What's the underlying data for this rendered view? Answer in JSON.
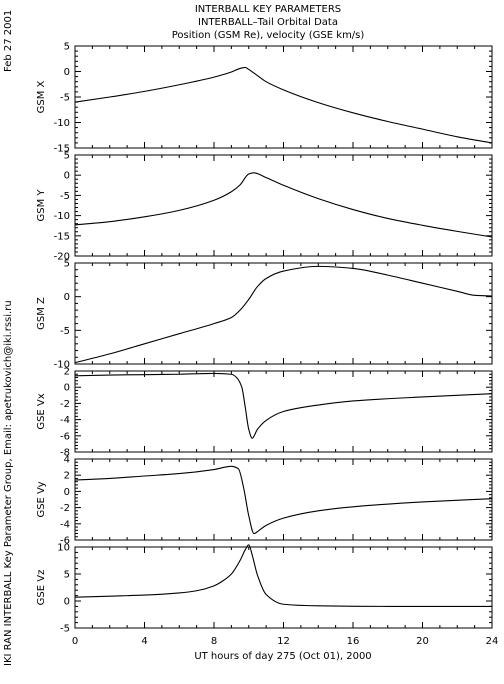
{
  "header": {
    "title": "INTERBALL KEY PARAMETERS",
    "subtitle": "INTERBALL–Tail Orbital Data",
    "subtitle2": "Position (GSM Re), velocity (GSE km/s)",
    "date": "Feb 27 2001",
    "credit": "IKI RAN INTERBALL Key Parameter Group, Email: apetrukovich@iki.rssi.ru"
  },
  "chart_data": [
    {
      "type": "line",
      "ylabel": "GSM X",
      "xlim": [
        0,
        24
      ],
      "ylim": [
        -15,
        5
      ],
      "yticks": [
        5,
        0,
        -5,
        -10,
        -15
      ],
      "x": [
        0,
        2,
        4,
        6,
        8,
        9,
        9.5,
        9.8,
        10,
        10.5,
        11,
        12,
        14,
        16,
        18,
        20,
        22,
        24
      ],
      "y": [
        -6,
        -5,
        -3.9,
        -2.6,
        -1.1,
        -0.1,
        0.6,
        0.8,
        0.4,
        -0.8,
        -2,
        -3.6,
        -6.1,
        -8.1,
        -9.8,
        -11.3,
        -12.8,
        -14
      ]
    },
    {
      "type": "line",
      "ylabel": "GSM Y",
      "xlim": [
        0,
        24
      ],
      "ylim": [
        -20,
        5
      ],
      "yticks": [
        5,
        0,
        -5,
        -10,
        -15,
        -20
      ],
      "x": [
        0,
        2,
        4,
        6,
        8,
        9,
        9.5,
        10,
        10.3,
        11,
        12,
        14,
        16,
        18,
        20,
        22,
        24
      ],
      "y": [
        -12.3,
        -11.5,
        -10.3,
        -8.7,
        -6.2,
        -4.1,
        -2.4,
        0.3,
        0.6,
        -0.6,
        -2.5,
        -5.8,
        -8.5,
        -10.7,
        -12.4,
        -13.9,
        -15.3
      ]
    },
    {
      "type": "line",
      "ylabel": "GSM Z",
      "xlim": [
        0,
        24
      ],
      "ylim": [
        -10,
        5
      ],
      "yticks": [
        5,
        0,
        -5,
        -10
      ],
      "x": [
        0,
        2,
        4,
        6,
        8,
        9,
        9.5,
        10,
        10.5,
        11,
        12,
        14,
        16,
        18,
        20,
        22,
        23,
        24
      ],
      "y": [
        -9.8,
        -8.5,
        -7,
        -5.5,
        -4,
        -3.1,
        -2,
        -0.4,
        1.5,
        2.7,
        3.8,
        4.5,
        4.2,
        3.2,
        2,
        0.8,
        0.2,
        0.1
      ]
    },
    {
      "type": "line",
      "ylabel": "GSE Vx",
      "xlim": [
        0,
        24
      ],
      "ylim": [
        -8,
        2
      ],
      "yticks": [
        2,
        0,
        -2,
        -4,
        -6,
        -8
      ],
      "x": [
        0,
        2,
        4,
        6,
        8,
        9,
        9.3,
        9.6,
        9.8,
        10,
        10.2,
        10.5,
        11,
        12,
        14,
        16,
        20,
        24
      ],
      "y": [
        1.4,
        1.5,
        1.55,
        1.6,
        1.7,
        1.6,
        1.2,
        0,
        -2.5,
        -5.2,
        -6.3,
        -5.2,
        -4.1,
        -3,
        -2.2,
        -1.7,
        -1.2,
        -0.8
      ]
    },
    {
      "type": "line",
      "ylabel": "GSE Vy",
      "xlim": [
        0,
        24
      ],
      "ylim": [
        -6,
        4
      ],
      "yticks": [
        4,
        2,
        0,
        -2,
        -4,
        -6
      ],
      "x": [
        0,
        2,
        4,
        6,
        8,
        9,
        9.4,
        9.7,
        10,
        10.3,
        10.6,
        11,
        12,
        14,
        16,
        20,
        24
      ],
      "y": [
        1.4,
        1.6,
        1.9,
        2.2,
        2.7,
        3.1,
        2.8,
        0.5,
        -3,
        -5.2,
        -4.8,
        -4.2,
        -3.3,
        -2.4,
        -1.9,
        -1.3,
        -0.9
      ]
    },
    {
      "type": "line",
      "ylabel": "GSE Vz",
      "xlim": [
        0,
        24
      ],
      "ylim": [
        -5,
        10
      ],
      "yticks": [
        10,
        5,
        0,
        -5
      ],
      "x": [
        0,
        2,
        4,
        6,
        7,
        8,
        8.5,
        9,
        9.5,
        9.8,
        10,
        10.2,
        10.5,
        11,
        12,
        14,
        18,
        24
      ],
      "y": [
        0.7,
        0.9,
        1.1,
        1.5,
        1.9,
        2.8,
        3.7,
        5,
        7.5,
        9.5,
        10.4,
        8.5,
        4.8,
        1.2,
        -0.6,
        -0.9,
        -1,
        -1
      ]
    }
  ],
  "xaxis": {
    "label": "UT hours of day 275 (Oct 01), 2000",
    "ticks": [
      0,
      4,
      8,
      12,
      16,
      20,
      24
    ]
  }
}
